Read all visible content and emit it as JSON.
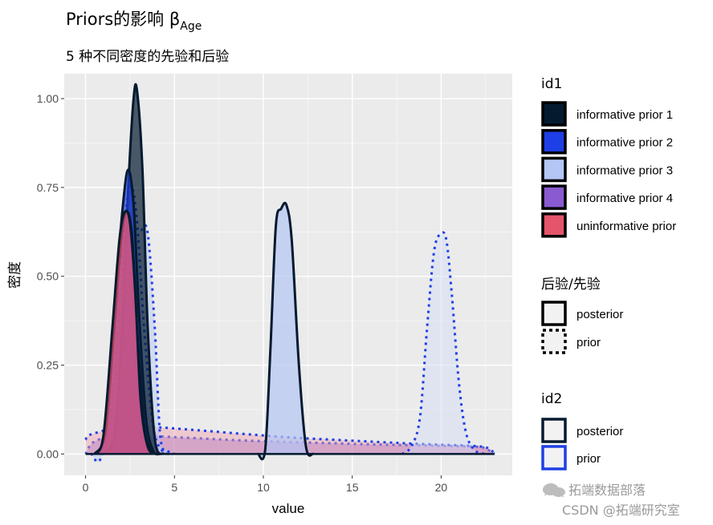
{
  "chart_data": {
    "type": "area",
    "title": "Priors的影响 β",
    "title_subscript": "Age",
    "subtitle": "5 种不同密度的先验和后验",
    "xlabel": "value",
    "ylabel": "密度",
    "xlim": [
      -1.2,
      24.0
    ],
    "ylim": [
      -0.06,
      1.07
    ],
    "x_ticks": [
      0,
      5,
      10,
      15,
      20
    ],
    "y_ticks": [
      0.0,
      0.25,
      0.5,
      0.75,
      1.0
    ],
    "y_tick_labels": [
      "0.00",
      "0.25",
      "0.50",
      "0.75",
      "1.00"
    ],
    "grid": true,
    "legend_placement": "right",
    "legends": [
      {
        "title": "id1",
        "entries": [
          {
            "label": "informative prior 1",
            "color": "#041a2f"
          },
          {
            "label": "informative prior 2",
            "color": "#1f3fe6"
          },
          {
            "label": "informative prior 3",
            "color": "#b4c6f4"
          },
          {
            "label": "informative prior 4",
            "color": "#8a5ad0"
          },
          {
            "label": "uninformative prior",
            "color": "#e4546a"
          }
        ]
      },
      {
        "title": "后验/先验",
        "entries": [
          {
            "label": "posterior",
            "linestyle": "solid"
          },
          {
            "label": "prior",
            "linestyle": "dashed"
          }
        ]
      },
      {
        "title": "id2",
        "entries": [
          {
            "label": "posterior",
            "color": "#041a2f"
          },
          {
            "label": "prior",
            "color": "#1f3fe6"
          }
        ]
      }
    ],
    "series": [
      {
        "id1": "informative prior 4",
        "type": "prior",
        "fill": "#8a5ad0",
        "line": "#1f3fe6",
        "x": [
          0,
          0.5,
          2,
          4,
          6,
          8,
          10,
          12,
          14,
          16,
          18,
          20,
          22,
          22.5,
          23
        ],
        "y": [
          0.0,
          0.035,
          0.055,
          0.05,
          0.045,
          0.04,
          0.036,
          0.033,
          0.03,
          0.027,
          0.025,
          0.023,
          0.02,
          0.015,
          0.0
        ]
      },
      {
        "id1": "uninformative prior",
        "type": "prior",
        "fill": "#f0a0ac",
        "line": "#1f3fe6",
        "x": [
          0,
          0.3,
          2,
          4,
          6,
          8,
          10,
          12,
          14,
          16,
          18,
          20,
          22,
          22.7,
          23
        ],
        "y": [
          0.04,
          0.055,
          0.075,
          0.075,
          0.068,
          0.06,
          0.052,
          0.045,
          0.04,
          0.035,
          0.03,
          0.026,
          0.022,
          0.015,
          0.0
        ]
      },
      {
        "id1": "informative prior 1",
        "type": "prior",
        "fill": "#b4c6f4",
        "line": "#1f3fe6",
        "x": [
          0.3,
          1,
          1.8,
          2.5,
          3.1,
          3.5,
          3.9,
          4.2,
          4.6,
          5
        ],
        "y": [
          0.0,
          0.02,
          0.5,
          0.62,
          0.63,
          0.62,
          0.35,
          0.05,
          0.01,
          0.0
        ]
      },
      {
        "id1": "informative prior 2",
        "type": "prior",
        "fill": "#b4c6f4",
        "line": "#1f3fe6",
        "x": [
          0.7,
          1.4,
          1.9,
          2.3,
          2.6,
          2.9,
          3.3,
          3.8,
          4.3,
          4.8
        ],
        "y": [
          0.0,
          0.1,
          0.4,
          0.7,
          0.75,
          0.65,
          0.35,
          0.08,
          0.01,
          0.0
        ]
      },
      {
        "id1": "informative prior 3",
        "type": "prior",
        "fill": "#d0dbf6",
        "line": "#1f3fe6",
        "x": [
          17.8,
          18.3,
          18.8,
          19.2,
          19.6,
          20.0,
          20.3,
          20.6,
          21.0,
          21.4,
          21.9,
          22.5
        ],
        "y": [
          0.0,
          0.02,
          0.1,
          0.35,
          0.57,
          0.62,
          0.6,
          0.45,
          0.2,
          0.06,
          0.01,
          0.0
        ]
      },
      {
        "id1": "informative prior 3",
        "type": "posterior",
        "fill": "#b4c6f4",
        "line": "#041a2f",
        "x": [
          9.7,
          10.1,
          10.4,
          10.7,
          11.0,
          11.3,
          11.6,
          12.0,
          12.4,
          12.8
        ],
        "y": [
          0.0,
          0.01,
          0.3,
          0.64,
          0.69,
          0.7,
          0.6,
          0.25,
          0.02,
          0.0
        ]
      },
      {
        "id1": "informative prior 1",
        "type": "posterior",
        "fill": "#041a2f",
        "line": "#041a2f",
        "x": [
          1.0,
          1.6,
          2.0,
          2.4,
          2.7,
          2.9,
          3.2,
          3.5,
          3.9,
          4.4
        ],
        "y": [
          0.0,
          0.05,
          0.3,
          0.75,
          1.0,
          1.02,
          0.8,
          0.35,
          0.04,
          0.0
        ]
      },
      {
        "id1": "informative prior 2",
        "type": "posterior",
        "fill": "#1f3fe6",
        "line": "#041a2f",
        "x": [
          0.6,
          1.2,
          1.7,
          2.1,
          2.4,
          2.7,
          3.0,
          3.4,
          3.8,
          4.2
        ],
        "y": [
          0.0,
          0.08,
          0.45,
          0.7,
          0.8,
          0.7,
          0.4,
          0.1,
          0.01,
          0.0
        ]
      },
      {
        "id1": "informative prior 4",
        "type": "posterior",
        "fill": "#8a5ad0",
        "line": "#041a2f",
        "x": [
          0.5,
          1.1,
          1.6,
          2.0,
          2.3,
          2.6,
          2.9,
          3.3,
          3.7,
          4.1
        ],
        "y": [
          0.0,
          0.06,
          0.35,
          0.6,
          0.68,
          0.62,
          0.35,
          0.08,
          0.01,
          0.0
        ]
      },
      {
        "id1": "uninformative prior",
        "type": "posterior",
        "fill": "#e4546a",
        "line": "#041a2f",
        "x": [
          0.5,
          1.0,
          1.5,
          1.9,
          2.2,
          2.5,
          2.8,
          3.1,
          3.5,
          4.0
        ],
        "y": [
          0.0,
          0.05,
          0.35,
          0.6,
          0.68,
          0.65,
          0.45,
          0.15,
          0.02,
          0.0
        ]
      }
    ]
  },
  "watermark": {
    "line1": "拓端数据部落",
    "line2": "CSDN @拓端研究室"
  }
}
